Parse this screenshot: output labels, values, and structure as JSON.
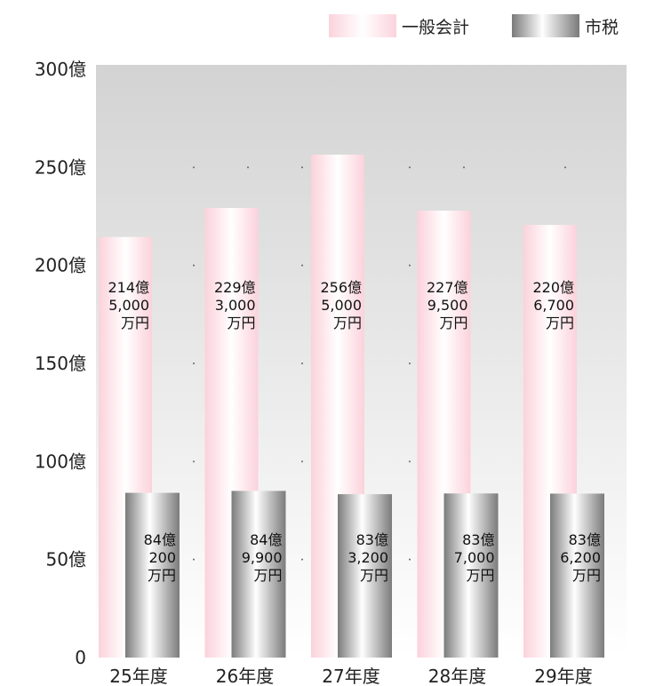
{
  "legend": {
    "general": "一般会計",
    "city": "市税"
  },
  "colors": {
    "general_edge": "#fbd3dc",
    "city_edge": "#7a7a7a",
    "bg_top": "#d5d5d5",
    "bg_bottom": "#ffffff"
  },
  "chart_data": {
    "type": "bar",
    "categories": [
      "25年度",
      "26年度",
      "27年度",
      "28年度",
      "29年度"
    ],
    "series": [
      {
        "name": "一般会計",
        "values": [
          214.5,
          229.3,
          256.5,
          227.95,
          220.67
        ],
        "labels": [
          [
            "214億",
            "5,000",
            "万円"
          ],
          [
            "229億",
            "3,000",
            "万円"
          ],
          [
            "256億",
            "5,000",
            "万円"
          ],
          [
            "227億",
            "9,500",
            "万円"
          ],
          [
            "220億",
            "6,700",
            "万円"
          ]
        ]
      },
      {
        "name": "市税",
        "values": [
          84.02,
          84.99,
          83.32,
          83.7,
          83.62
        ],
        "labels": [
          [
            "84億",
            "200",
            "万円"
          ],
          [
            "84億",
            "9,900",
            "万円"
          ],
          [
            "83億",
            "3,200",
            "万円"
          ],
          [
            "83億",
            "7,000",
            "万円"
          ],
          [
            "83億",
            "6,200",
            "万円"
          ]
        ]
      }
    ],
    "yticks": [
      "0",
      "50億",
      "100億",
      "150億",
      "200億",
      "250億",
      "300億"
    ],
    "ylim": [
      0,
      300
    ],
    "grid": "dotted",
    "legend_position": "top-right"
  }
}
